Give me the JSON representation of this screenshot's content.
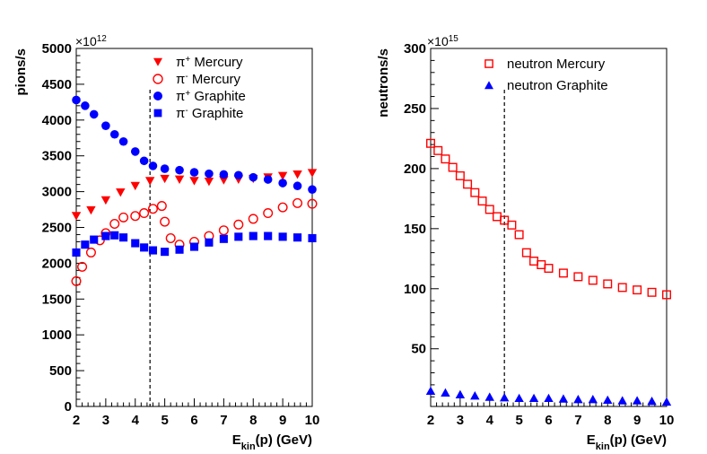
{
  "chart_data": [
    {
      "type": "scatter",
      "xlabel": "E",
      "xlabel_sub": "kin",
      "xlabel_tail": "(p) (GeV)",
      "ylabel": "pions/s",
      "y_multiplier_base": "×10",
      "y_multiplier_exp": "12",
      "xlim": [
        2,
        10
      ],
      "ylim": [
        0,
        5000
      ],
      "x_ticks": [
        2,
        3,
        4,
        5,
        6,
        7,
        8,
        9,
        10
      ],
      "y_ticks": [
        0,
        500,
        1000,
        1500,
        2000,
        2500,
        3000,
        3500,
        4000,
        4500,
        5000
      ],
      "vline_x": 4.5,
      "legend_position": "top-right",
      "series": [
        {
          "name": "π⁺ Mercury",
          "sym": "π",
          "sup": "+",
          "label": " Mercury",
          "marker": "triangle-down",
          "color": "#ff0000",
          "filled": true,
          "x": [
            2.0,
            2.5,
            3.0,
            3.5,
            4.0,
            4.5,
            5.0,
            5.5,
            6.0,
            6.5,
            7.0,
            7.5,
            8.0,
            8.5,
            9.0,
            9.5,
            10.0
          ],
          "y": [
            2660,
            2740,
            2880,
            2990,
            3080,
            3150,
            3180,
            3170,
            3150,
            3140,
            3160,
            3170,
            3180,
            3200,
            3220,
            3240,
            3260
          ]
        },
        {
          "name": "π⁻ Mercury",
          "sym": "π",
          "sup": "-",
          "label": " Mercury",
          "marker": "circle",
          "color": "#ff0000",
          "filled": false,
          "x": [
            2.0,
            2.2,
            2.5,
            2.8,
            3.0,
            3.3,
            3.6,
            4.0,
            4.3,
            4.6,
            4.9,
            5.0,
            5.2,
            5.5,
            6.0,
            6.5,
            7.0,
            7.5,
            8.0,
            8.5,
            9.0,
            9.5,
            10.0
          ],
          "y": [
            1750,
            1950,
            2150,
            2320,
            2420,
            2550,
            2640,
            2660,
            2700,
            2760,
            2800,
            2580,
            2350,
            2260,
            2300,
            2380,
            2460,
            2540,
            2620,
            2700,
            2780,
            2840,
            2830
          ]
        },
        {
          "name": "π⁺ Graphite",
          "sym": "π",
          "sup": "+",
          "label": " Graphite",
          "marker": "circle",
          "color": "#0000ff",
          "filled": true,
          "x": [
            2.0,
            2.3,
            2.6,
            3.0,
            3.3,
            3.6,
            4.0,
            4.3,
            4.6,
            5.0,
            5.5,
            6.0,
            6.5,
            7.0,
            7.5,
            8.0,
            8.5,
            9.0,
            9.5,
            10.0
          ],
          "y": [
            4280,
            4200,
            4080,
            3920,
            3800,
            3700,
            3560,
            3430,
            3360,
            3320,
            3300,
            3270,
            3250,
            3240,
            3230,
            3200,
            3170,
            3120,
            3080,
            3030
          ]
        },
        {
          "name": "π⁻ Graphite",
          "sym": "π",
          "sup": "-",
          "label": " Graphite",
          "marker": "square",
          "color": "#0000ff",
          "filled": true,
          "x": [
            2.0,
            2.3,
            2.6,
            3.0,
            3.3,
            3.6,
            4.0,
            4.3,
            4.6,
            5.0,
            5.5,
            6.0,
            6.5,
            7.0,
            7.5,
            8.0,
            8.5,
            9.0,
            9.5,
            10.0
          ],
          "y": [
            2150,
            2260,
            2330,
            2380,
            2390,
            2360,
            2280,
            2220,
            2180,
            2160,
            2190,
            2230,
            2290,
            2340,
            2370,
            2380,
            2380,
            2370,
            2360,
            2350
          ]
        }
      ]
    },
    {
      "type": "scatter",
      "xlabel": "E",
      "xlabel_sub": "kin",
      "xlabel_tail": "(p) (GeV)",
      "ylabel": "neutrons/s",
      "y_multiplier_base": "×10",
      "y_multiplier_exp": "15",
      "xlim": [
        2,
        10
      ],
      "ylim": [
        2,
        300
      ],
      "x_ticks": [
        2,
        3,
        4,
        5,
        6,
        7,
        8,
        9,
        10
      ],
      "y_ticks": [
        50,
        100,
        150,
        200,
        250,
        300
      ],
      "vline_x": 4.5,
      "legend_position": "top-right",
      "series": [
        {
          "name": "neutron Mercury",
          "sym": "",
          "sup": "",
          "label": "neutron Mercury",
          "marker": "square",
          "color": "#ff0000",
          "filled": false,
          "x": [
            2.0,
            2.25,
            2.5,
            2.75,
            3.0,
            3.25,
            3.5,
            3.75,
            4.0,
            4.25,
            4.5,
            4.75,
            5.0,
            5.25,
            5.5,
            5.75,
            6.0,
            6.5,
            7.0,
            7.5,
            8.0,
            8.5,
            9.0,
            9.5,
            10.0
          ],
          "y": [
            221,
            215,
            208,
            201,
            194,
            187,
            180,
            173,
            166,
            160,
            157,
            153,
            145,
            130,
            123,
            120,
            117,
            113,
            110,
            107,
            104,
            101,
            99,
            97,
            95
          ]
        },
        {
          "name": "neutron Graphite",
          "sym": "",
          "sup": "",
          "label": "neutron Graphite",
          "marker": "triangle-up",
          "color": "#0000ff",
          "filled": true,
          "x": [
            2.0,
            2.5,
            3.0,
            3.5,
            4.0,
            4.5,
            5.0,
            5.5,
            6.0,
            6.5,
            7.0,
            7.5,
            8.0,
            8.5,
            9.0,
            9.5,
            10.0
          ],
          "y": [
            15,
            13.5,
            12,
            11,
            10,
            9.5,
            9,
            9,
            9,
            8.5,
            8,
            8,
            7.5,
            7,
            7,
            6.5,
            6
          ]
        }
      ]
    }
  ]
}
